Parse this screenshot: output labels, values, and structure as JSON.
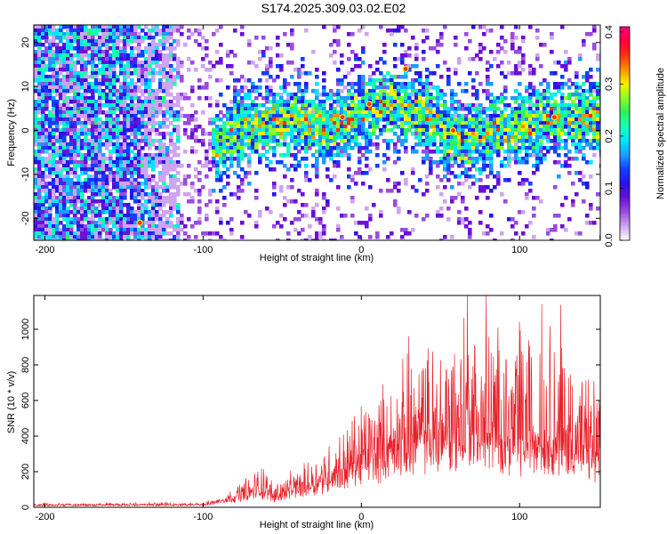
{
  "page_title": "S174.2025.309.03.02.E02",
  "colors": {
    "snr_line": "#e8202a",
    "colormap": [
      "#ffffff",
      "#cfa4f0",
      "#9a4ce0",
      "#6a10d8",
      "#2a14e8",
      "#1040ff",
      "#1e9cff",
      "#00e6ff",
      "#19ffb4",
      "#30f05a",
      "#8cff24",
      "#ffee00",
      "#ff9000",
      "#ff3010",
      "#ff0040",
      "#ff0080"
    ]
  },
  "chart_data": [
    {
      "type": "heatmap",
      "title": "S174.2025.309.03.02.E02",
      "xlabel": "Height of straight line (km)",
      "ylabel": "Frequency (Hz)",
      "xlim": [
        -207,
        151
      ],
      "ylim": [
        -25,
        24
      ],
      "xticks": [
        -200,
        -100,
        0,
        100
      ],
      "yticks": [
        -20,
        -10,
        0,
        10,
        20
      ],
      "colorbar": {
        "label": "Normalized spectral amplitude",
        "range": [
          0.0,
          0.41
        ],
        "ticks": [
          "0.0",
          "0.1",
          "0.2",
          "0.3",
          "0.4"
        ]
      },
      "band_center_profile": {
        "x": [
          -100,
          -80,
          -60,
          -40,
          -20,
          0,
          20,
          40,
          60,
          80,
          100,
          120,
          150
        ],
        "center_hz": [
          -4,
          0,
          2,
          2,
          1,
          5,
          6,
          4,
          -2,
          0,
          1,
          3,
          3
        ]
      }
    },
    {
      "type": "line",
      "xlabel": "Height of straight line (km)",
      "ylabel": "SNR (10 * v/v)",
      "xlim": [
        -207,
        151
      ],
      "ylim": [
        0,
        1190
      ],
      "xticks": [
        -200,
        -100,
        0,
        100
      ],
      "yticks": [
        0,
        200,
        400,
        600,
        800,
        1000
      ],
      "envelope": {
        "x": [
          -207,
          -100,
          -92,
          -80,
          -70,
          -62,
          -56,
          -40,
          -25,
          -10,
          0,
          10,
          20,
          30,
          40,
          50,
          60,
          70,
          80,
          90,
          100,
          110,
          120,
          130,
          140,
          151
        ],
        "base": [
          10,
          12,
          25,
          45,
          60,
          70,
          45,
          80,
          120,
          160,
          200,
          220,
          250,
          290,
          300,
          310,
          320,
          330,
          310,
          300,
          290,
          280,
          270,
          250,
          240,
          230
        ],
        "spread": [
          12,
          14,
          20,
          60,
          120,
          180,
          90,
          120,
          200,
          280,
          370,
          420,
          450,
          520,
          560,
          600,
          680,
          760,
          700,
          650,
          680,
          720,
          740,
          620,
          520,
          420
        ]
      },
      "peaks": [
        {
          "x": 67,
          "y": 1190
        },
        {
          "x": 79,
          "y": 1190
        },
        {
          "x": 114,
          "y": 1140
        },
        {
          "x": 126,
          "y": 1135
        },
        {
          "x": 30,
          "y": 960
        },
        {
          "x": 100,
          "y": 1040
        }
      ]
    }
  ]
}
